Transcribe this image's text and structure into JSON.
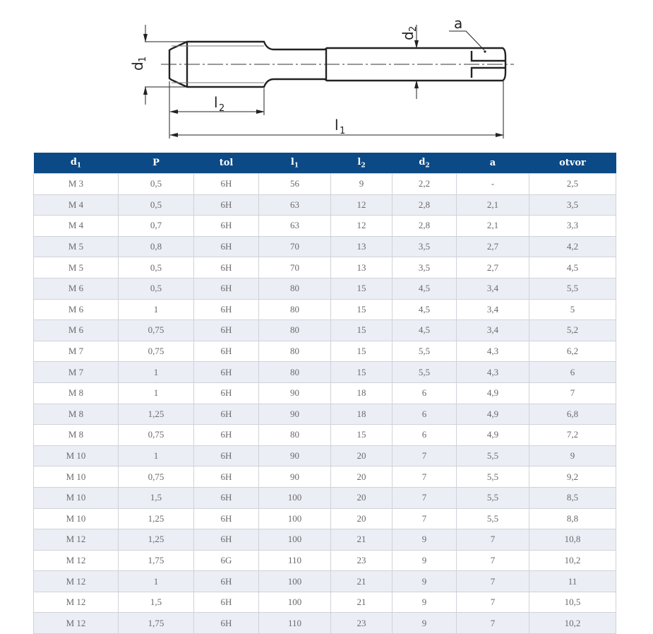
{
  "drawing": {
    "labels": {
      "d1": "d",
      "d1_sub": "1",
      "d2": "d",
      "d2_sub": "2",
      "l1": "l",
      "l1_sub": "1",
      "l2": "l",
      "l2_sub": "2",
      "a": "a"
    }
  },
  "table": {
    "headers": [
      {
        "base": "d",
        "sub": "1"
      },
      {
        "base": "P",
        "sub": ""
      },
      {
        "base": "tol",
        "sub": ""
      },
      {
        "base": "l",
        "sub": "1"
      },
      {
        "base": "l",
        "sub": "2"
      },
      {
        "base": "d",
        "sub": "2"
      },
      {
        "base": "a",
        "sub": ""
      },
      {
        "base": "otvor",
        "sub": ""
      }
    ],
    "rows": [
      [
        "M 3",
        "0,5",
        "6H",
        "56",
        "9",
        "2,2",
        "-",
        "2,5"
      ],
      [
        "M 4",
        "0,5",
        "6H",
        "63",
        "12",
        "2,8",
        "2,1",
        "3,5"
      ],
      [
        "M 4",
        "0,7",
        "6H",
        "63",
        "12",
        "2,8",
        "2,1",
        "3,3"
      ],
      [
        "M 5",
        "0,8",
        "6H",
        "70",
        "13",
        "3,5",
        "2,7",
        "4,2"
      ],
      [
        "M 5",
        "0,5",
        "6H",
        "70",
        "13",
        "3,5",
        "2,7",
        "4,5"
      ],
      [
        "M 6",
        "0,5",
        "6H",
        "80",
        "15",
        "4,5",
        "3,4",
        "5,5"
      ],
      [
        "M 6",
        "1",
        "6H",
        "80",
        "15",
        "4,5",
        "3,4",
        "5"
      ],
      [
        "M 6",
        "0,75",
        "6H",
        "80",
        "15",
        "4,5",
        "3,4",
        "5,2"
      ],
      [
        "M 7",
        "0,75",
        "6H",
        "80",
        "15",
        "5,5",
        "4,3",
        "6,2"
      ],
      [
        "M 7",
        "1",
        "6H",
        "80",
        "15",
        "5,5",
        "4,3",
        "6"
      ],
      [
        "M 8",
        "1",
        "6H",
        "90",
        "18",
        "6",
        "4,9",
        "7"
      ],
      [
        "M 8",
        "1,25",
        "6H",
        "90",
        "18",
        "6",
        "4,9",
        "6,8"
      ],
      [
        "M 8",
        "0,75",
        "6H",
        "80",
        "15",
        "6",
        "4,9",
        "7,2"
      ],
      [
        "M 10",
        "1",
        "6H",
        "90",
        "20",
        "7",
        "5,5",
        "9"
      ],
      [
        "M 10",
        "0,75",
        "6H",
        "90",
        "20",
        "7",
        "5,5",
        "9,2"
      ],
      [
        "M 10",
        "1,5",
        "6H",
        "100",
        "20",
        "7",
        "5,5",
        "8,5"
      ],
      [
        "M 10",
        "1,25",
        "6H",
        "100",
        "20",
        "7",
        "5,5",
        "8,8"
      ],
      [
        "M 12",
        "1,25",
        "6H",
        "100",
        "21",
        "9",
        "7",
        "10,8"
      ],
      [
        "M 12",
        "1,75",
        "6G",
        "110",
        "23",
        "9",
        "7",
        "10,2"
      ],
      [
        "M 12",
        "1",
        "6H",
        "100",
        "21",
        "9",
        "7",
        "11"
      ],
      [
        "M 12",
        "1,5",
        "6H",
        "100",
        "21",
        "9",
        "7",
        "10,5"
      ],
      [
        "M 12",
        "1,75",
        "6H",
        "110",
        "23",
        "9",
        "7",
        "10,2"
      ]
    ]
  },
  "colors": {
    "header_bg": "#0b4a86",
    "row_alt": "#eceef6",
    "border": "#cfd2d9"
  }
}
